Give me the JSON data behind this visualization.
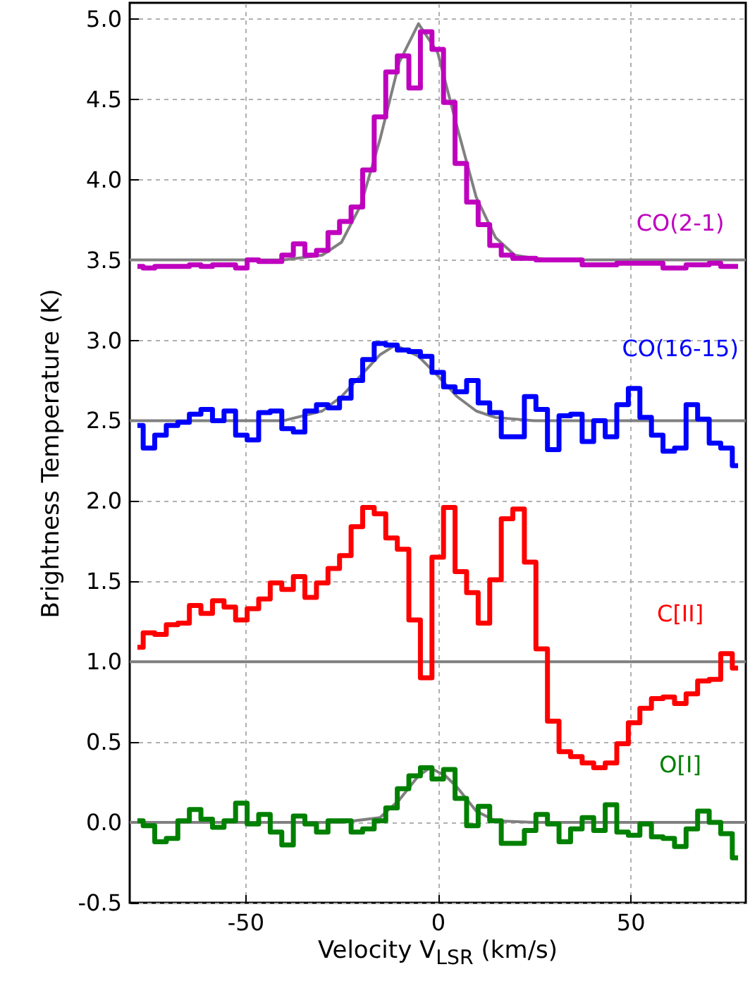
{
  "chart_data": {
    "type": "step",
    "xlabel": "Velocity V$_{LSR}$ (km/s)",
    "ylabel": "Brightness Temperature (K)",
    "xlim": [
      -80,
      80
    ],
    "xticks": [
      -50,
      0,
      50
    ],
    "ylim": [
      -0.5,
      5.1
    ],
    "yticks": [
      -0.5,
      {
        "value": 0,
        "label": "0.0"
      },
      0.5,
      {
        "value": 1,
        "label": "1.0"
      },
      1.5,
      {
        "value": 2,
        "label": "2.0"
      },
      2.5,
      {
        "value": 3,
        "label": "3.0"
      },
      3.5,
      {
        "value": 4,
        "label": "4.0"
      },
      4.5,
      {
        "value": 5,
        "label": "5.0"
      }
    ],
    "grid": true,
    "x": [
      -78,
      -75,
      -72,
      -69,
      -66,
      -63,
      -60,
      -57,
      -54,
      -51,
      -48,
      -45,
      -42,
      -39,
      -36,
      -33,
      -30,
      -27,
      -24,
      -21,
      -18,
      -15,
      -12,
      -9,
      -6,
      -3,
      0,
      3,
      6,
      9,
      12,
      15,
      18,
      21,
      24,
      27,
      30,
      33,
      36,
      39,
      42,
      45,
      48,
      51,
      54,
      57,
      60,
      63,
      66,
      69,
      72,
      75,
      78
    ],
    "series": [
      {
        "type": "line",
        "color": "#808080",
        "x": [
          -80,
          -40,
          -30,
          -25,
          -20,
          -15,
          -10,
          -5,
          0,
          5,
          10,
          15,
          20,
          25,
          35,
          80
        ],
        "values": [
          3.5,
          3.5,
          3.53,
          3.61,
          3.84,
          4.25,
          4.73,
          4.97,
          4.79,
          4.33,
          3.89,
          3.64,
          3.53,
          3.51,
          3.5,
          3.5
        ]
      },
      {
        "type": "line",
        "color": "#808080",
        "x": [
          -80,
          -40,
          -30,
          -25,
          -20,
          -15,
          -11,
          -5,
          0,
          5,
          10,
          15,
          25,
          80
        ],
        "values": [
          2.5,
          2.5,
          2.56,
          2.65,
          2.78,
          2.91,
          2.97,
          2.9,
          2.78,
          2.65,
          2.56,
          2.52,
          2.5,
          2.5
        ]
      },
      {
        "type": "line",
        "color": "#808080",
        "x": [
          -80,
          80
        ],
        "values": [
          1.0,
          1.0
        ]
      },
      {
        "type": "line",
        "color": "#808080",
        "x": [
          -80,
          -25,
          -15,
          -10,
          -5,
          -2,
          2,
          5,
          10,
          15,
          25,
          80
        ],
        "values": [
          0.0,
          0.0,
          0.03,
          0.14,
          0.29,
          0.34,
          0.29,
          0.22,
          0.07,
          0.01,
          0.0,
          0.0
        ]
      },
      {
        "name": "CO(2-1)",
        "color": "#bf00bf",
        "values": [
          3.46,
          3.45,
          3.46,
          3.46,
          3.46,
          3.47,
          3.46,
          3.47,
          3.47,
          3.45,
          3.5,
          3.49,
          3.49,
          3.53,
          3.6,
          3.53,
          3.56,
          3.67,
          3.74,
          3.83,
          4.06,
          4.39,
          4.67,
          4.77,
          4.57,
          4.92,
          4.81,
          4.48,
          4.1,
          3.86,
          3.72,
          3.59,
          3.53,
          3.51,
          3.51,
          3.5,
          3.5,
          3.5,
          3.5,
          3.47,
          3.47,
          3.47,
          3.48,
          3.48,
          3.48,
          3.48,
          3.45,
          3.45,
          3.47,
          3.47,
          3.48,
          3.46,
          3.46
        ]
      },
      {
        "name": "CO(16-15)",
        "color": "#0000ff",
        "values": [
          2.47,
          2.33,
          2.41,
          2.47,
          2.49,
          2.54,
          2.57,
          2.5,
          2.56,
          2.41,
          2.38,
          2.55,
          2.56,
          2.45,
          2.43,
          2.56,
          2.6,
          2.58,
          2.64,
          2.75,
          2.88,
          2.98,
          2.97,
          2.94,
          2.93,
          2.9,
          2.8,
          2.71,
          2.68,
          2.75,
          2.61,
          2.55,
          2.4,
          2.4,
          2.65,
          2.57,
          2.32,
          2.53,
          2.54,
          2.37,
          2.5,
          2.4,
          2.6,
          2.7,
          2.52,
          2.41,
          2.31,
          2.33,
          2.6,
          2.51,
          2.36,
          2.33,
          2.22
        ]
      },
      {
        "name": "C[II]",
        "color": "#ff0000",
        "values": [
          1.09,
          1.18,
          1.17,
          1.23,
          1.24,
          1.35,
          1.3,
          1.38,
          1.34,
          1.26,
          1.33,
          1.39,
          1.49,
          1.45,
          1.53,
          1.4,
          1.49,
          1.58,
          1.66,
          1.84,
          1.96,
          1.92,
          1.77,
          1.7,
          1.26,
          0.9,
          1.65,
          1.96,
          1.56,
          1.43,
          1.24,
          1.51,
          1.89,
          1.95,
          1.62,
          1.08,
          0.63,
          0.44,
          0.41,
          0.37,
          0.34,
          0.37,
          0.49,
          0.62,
          0.71,
          0.77,
          0.78,
          0.74,
          0.8,
          0.88,
          0.89,
          1.05,
          0.96
        ]
      },
      {
        "name": "O[I]",
        "color": "#008000",
        "values": [
          0.01,
          -0.02,
          -0.12,
          -0.1,
          0.01,
          0.08,
          0.02,
          -0.03,
          0.01,
          0.12,
          -0.01,
          0.05,
          -0.06,
          -0.14,
          0.04,
          -0.01,
          -0.06,
          0.01,
          0.01,
          -0.06,
          -0.04,
          0.01,
          0.09,
          0.21,
          0.29,
          0.34,
          0.27,
          0.33,
          0.15,
          -0.02,
          0.1,
          0.01,
          -0.13,
          -0.13,
          -0.05,
          0.05,
          -0.01,
          -0.12,
          -0.04,
          0.03,
          -0.05,
          0.11,
          -0.06,
          -0.08,
          -0.01,
          -0.09,
          -0.1,
          -0.15,
          -0.04,
          0.07,
          0.0,
          -0.07,
          -0.22
        ]
      }
    ]
  }
}
